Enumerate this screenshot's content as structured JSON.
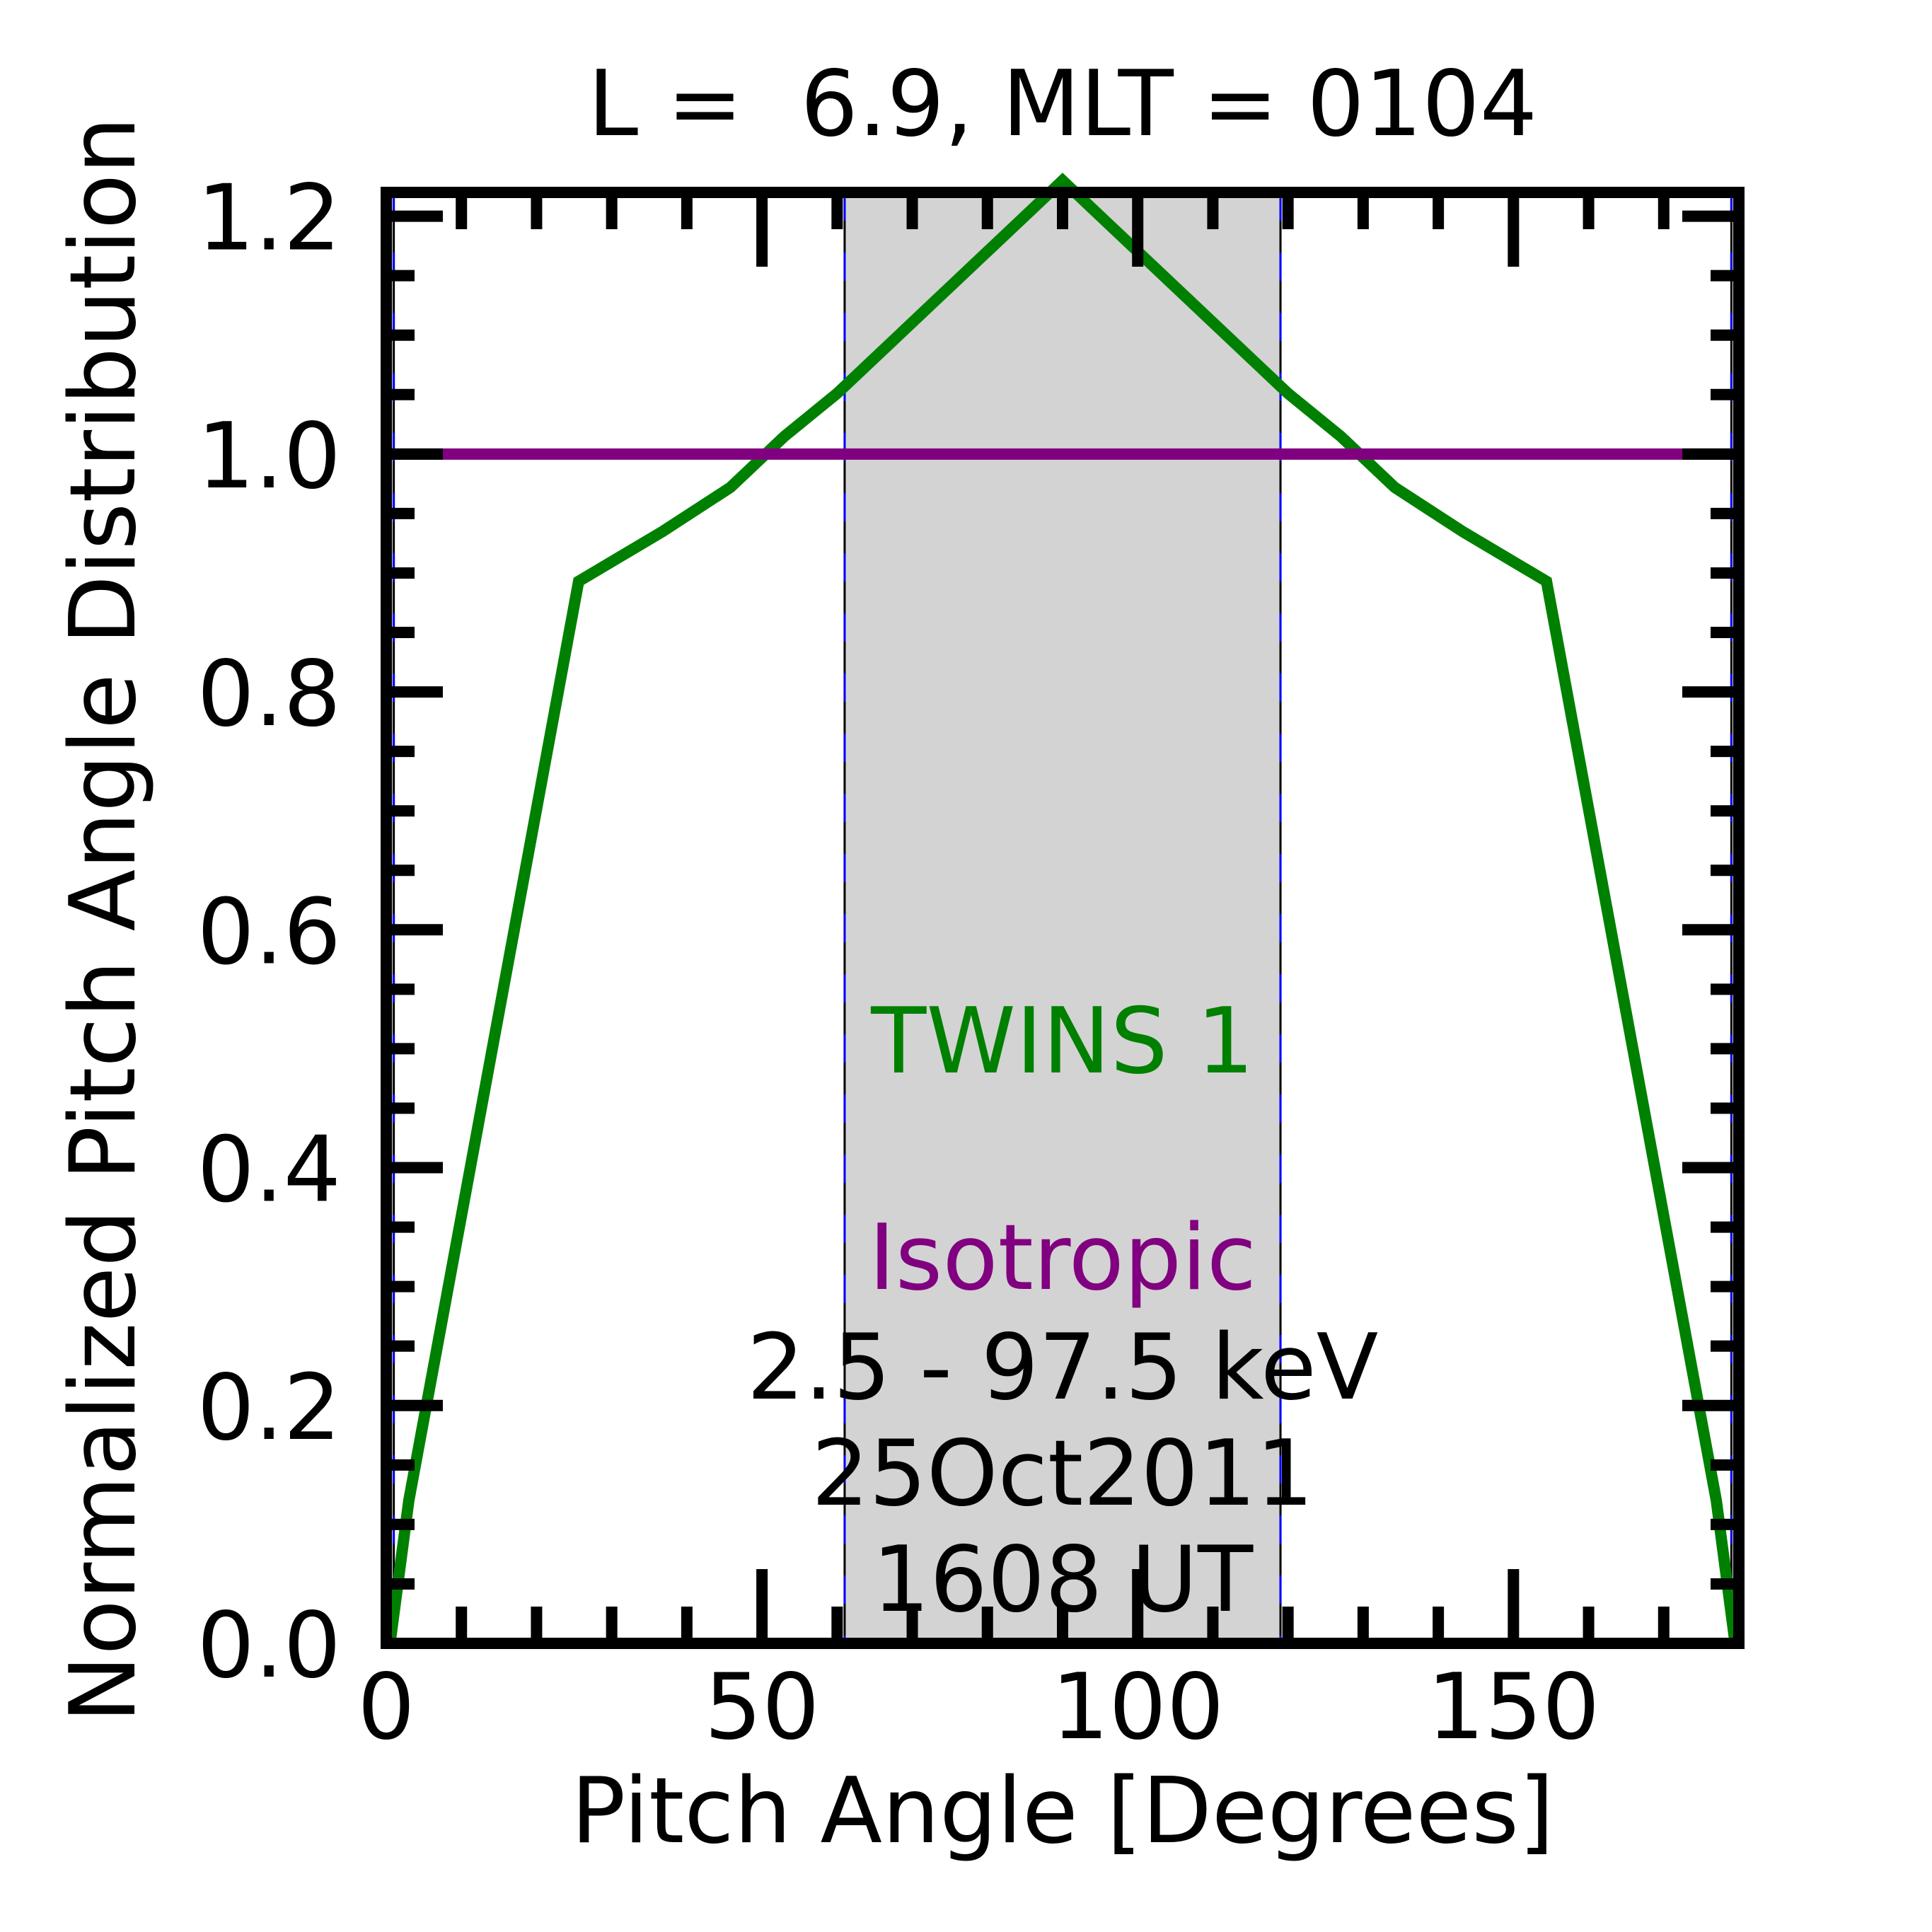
{
  "chart_data": {
    "type": "line",
    "title": "L =  6.9, MLT = 0104",
    "xlabel": "Pitch Angle [Degrees]",
    "ylabel": "Normalized Pitch Angle Distribution",
    "xlim": [
      0,
      180
    ],
    "ylim": [
      0,
      1.22
    ],
    "grid": false,
    "xticks": [
      0,
      50,
      100,
      150
    ],
    "xtick_labels": [
      "0",
      "50",
      "100",
      "150"
    ],
    "yticks": [
      0.0,
      0.2,
      0.4,
      0.6,
      0.8,
      1.0,
      1.2
    ],
    "ytick_labels": [
      "0.0",
      "0.2",
      "0.4",
      "0.6",
      "0.8",
      "1.0",
      "1.2"
    ],
    "x_minor_step": 10,
    "y_minor_step": 0.05,
    "shaded_regions": [
      {
        "x0": 0,
        "x1": 1,
        "color": "#d3d3d3"
      },
      {
        "x0": 61,
        "x1": 119,
        "color": "#d3d3d3"
      },
      {
        "x0": 179,
        "x1": 180,
        "color": "#d3d3d3"
      }
    ],
    "series": [
      {
        "name": "TWINS 1",
        "color": "#008000",
        "x": [
          0.5,
          3,
          25.6,
          36.8,
          45.8,
          53,
          60,
          90,
          120,
          127,
          134.2,
          143.2,
          154.4,
          177,
          179.5
        ],
        "y": [
          0.0,
          0.12,
          0.893,
          0.935,
          0.972,
          1.015,
          1.051,
          1.23,
          1.051,
          1.015,
          0.972,
          0.935,
          0.893,
          0.12,
          0.0
        ]
      },
      {
        "name": "Isotropic",
        "color": "#800080",
        "x": [
          0,
          180
        ],
        "y": [
          1.0,
          1.0
        ]
      }
    ],
    "annotations": [
      {
        "text": "TWINS 1",
        "color": "#008000"
      },
      {
        "text": "Isotropic",
        "color": "#800080"
      },
      {
        "text": "2.5 - 97.5 keV",
        "color": "#000000"
      },
      {
        "text": "25Oct2011",
        "color": "#000000"
      },
      {
        "text": "1608 UT",
        "color": "#000000"
      }
    ]
  }
}
